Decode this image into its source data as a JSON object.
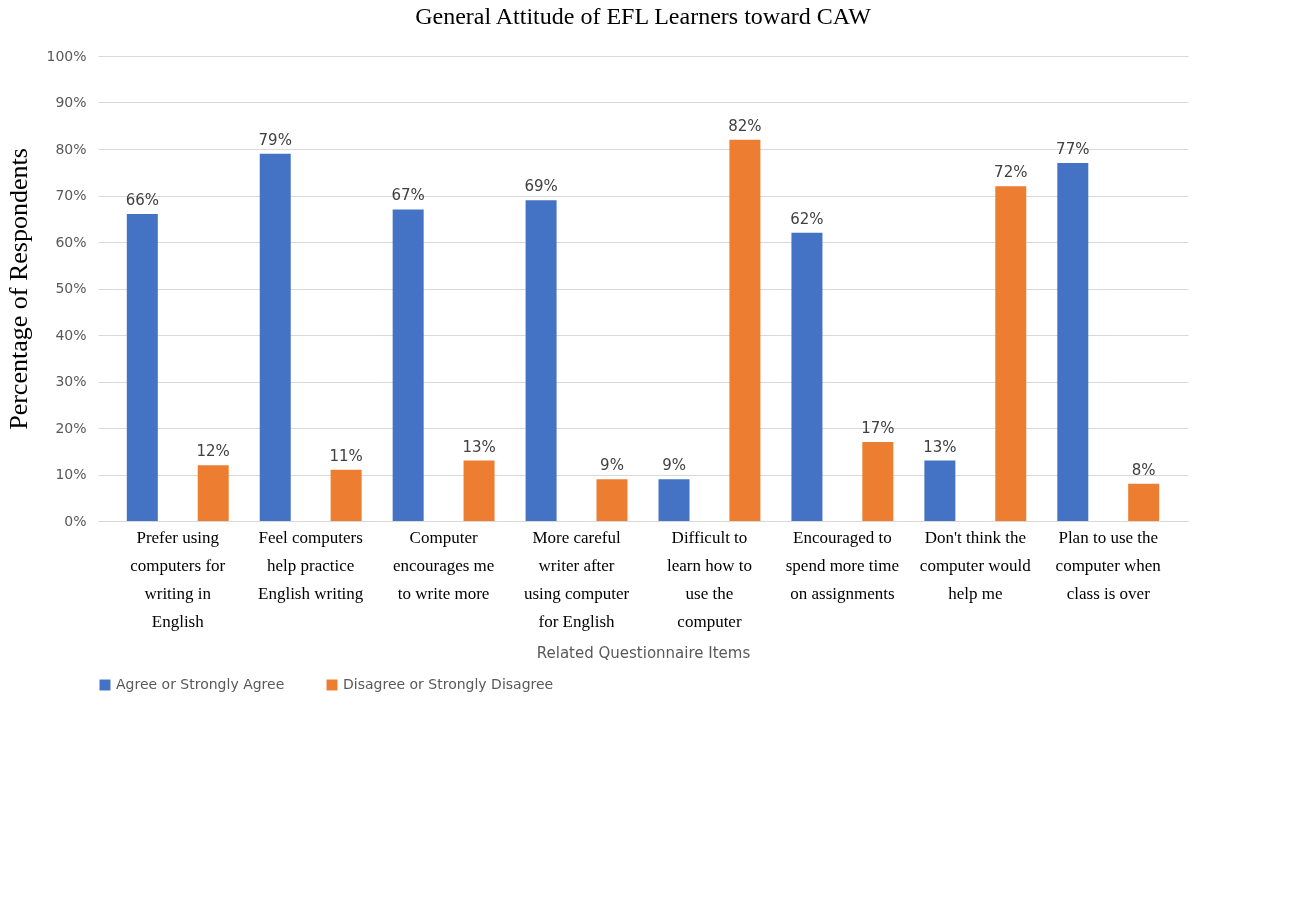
{
  "chart_data": {
    "type": "bar",
    "title": "General Attitude of EFL Learners toward CAW",
    "xlabel": "Related Questionnaire Items",
    "ylabel": "Percentage of Respondents",
    "categories": [
      "Prefer using computers for writing in English",
      "Feel computers help practice English writing",
      "Computer encourages me to write more",
      "More careful writer after using computer for English",
      "Difficult to learn how to use the computer",
      "Encouraged to spend more time on assignments",
      "Don't think the computer would help me",
      "Plan to use the computer when class is over"
    ],
    "series": [
      {
        "name": "Agree or Strongly Agree",
        "color": "#4472c4",
        "values": [
          66,
          79,
          67,
          69,
          9,
          62,
          13,
          77
        ]
      },
      {
        "name": "Disagree or Strongly Disagree",
        "color": "#ed7d31",
        "values": [
          12,
          11,
          13,
          9,
          82,
          17,
          72,
          8
        ]
      }
    ],
    "value_labels": [
      [
        "66%",
        "79%",
        "67%",
        "69%",
        "9%",
        "62%",
        "13%",
        "77%"
      ],
      [
        "12%",
        "11%",
        "13%",
        "9%",
        "82%",
        "17%",
        "72%",
        "8%"
      ]
    ],
    "ylim": [
      0,
      100
    ],
    "yticks": [
      {
        "value": 0,
        "label": "0%"
      },
      {
        "value": 10,
        "label": "10%"
      },
      {
        "value": 20,
        "label": "20%"
      },
      {
        "value": 30,
        "label": "30%"
      },
      {
        "value": 40,
        "label": "40%"
      },
      {
        "value": 50,
        "label": "50%"
      },
      {
        "value": 60,
        "label": "60%"
      },
      {
        "value": 70,
        "label": "70%"
      },
      {
        "value": 80,
        "label": "80%"
      },
      {
        "value": 90,
        "label": "90%"
      },
      {
        "value": 100,
        "label": "100%"
      }
    ],
    "grid": "y",
    "legend": "bottom"
  }
}
